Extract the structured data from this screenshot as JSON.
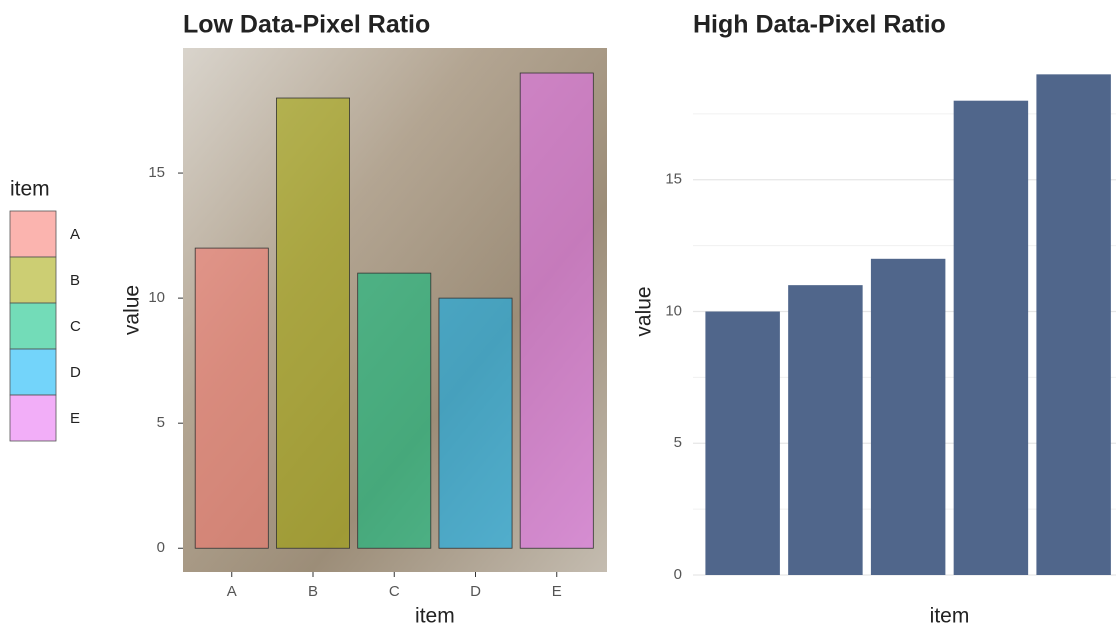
{
  "chart_data": [
    {
      "type": "bar",
      "title": "Low Data-Pixel Ratio",
      "x_label": "item",
      "y_label": "value",
      "categories": [
        "A",
        "B",
        "C",
        "D",
        "E"
      ],
      "values": [
        12,
        18,
        11,
        10,
        19
      ],
      "colors": [
        "#F8766D",
        "#A3A500",
        "#00BF7D",
        "#00B0F6",
        "#E76BF3"
      ],
      "legend_title": "item",
      "legend": "left",
      "ylim": [
        -0.95,
        20
      ],
      "yticks": [
        0,
        5,
        10,
        15
      ],
      "grid": false
    },
    {
      "type": "bar",
      "title": "High Data-Pixel Ratio",
      "x_label": "item",
      "y_label": "value",
      "categories": [
        null,
        null,
        null,
        null,
        null
      ],
      "values": [
        10,
        11,
        12,
        18,
        19
      ],
      "color": "#4a6187",
      "ylim": [
        0,
        20
      ],
      "yticks": [
        0,
        5,
        10,
        15
      ],
      "minor_yticks": [
        2.5,
        7.5,
        12.5,
        17.5
      ],
      "grid": true
    }
  ]
}
